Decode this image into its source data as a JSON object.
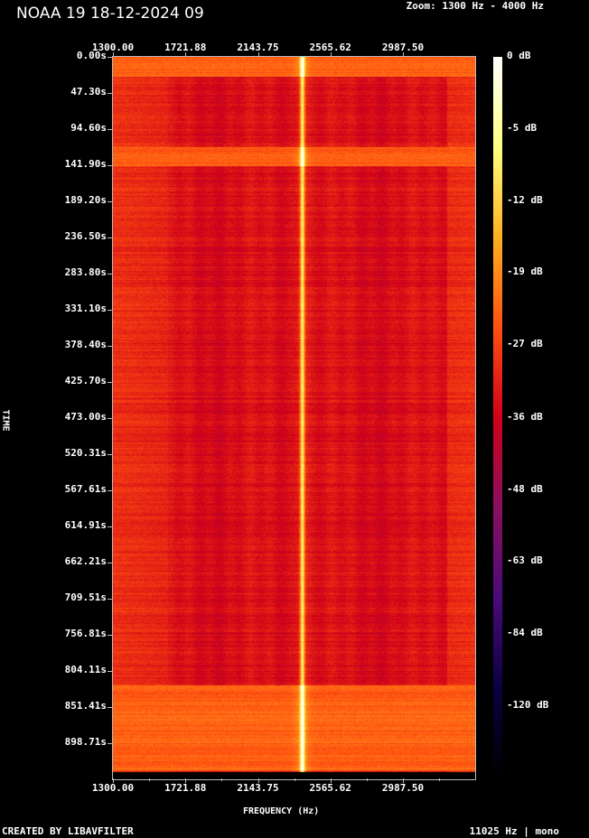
{
  "header": {
    "title": "NOAA 19 18-12-2024 09",
    "zoom_label": "Zoom: 1300 Hz - 4000 Hz"
  },
  "footer": {
    "left": "CREATED BY LIBAVFILTER",
    "right": "11025 Hz | mono"
  },
  "chart_data": {
    "type": "heatmap",
    "title": "NOAA 19 18-12-2024 09",
    "xlabel": "FREQUENCY (Hz)",
    "ylabel": "TIME",
    "x_ticks": [
      "1300.00",
      "1721.88",
      "2143.75",
      "2565.62",
      "2987.50"
    ],
    "x_tick_values": [
      1300,
      1721.88,
      2143.75,
      2565.62,
      2987.5
    ],
    "y_ticks": [
      "0.00s",
      "47.30s",
      "94.60s",
      "141.90s",
      "189.20s",
      "236.50s",
      "283.80s",
      "331.10s",
      "378.40s",
      "425.70s",
      "473.00s",
      "520.31s",
      "567.61s",
      "614.91s",
      "662.21s",
      "709.51s",
      "756.81s",
      "804.11s",
      "851.41s",
      "898.71s"
    ],
    "y_tick_values": [
      0,
      47.3,
      94.6,
      141.9,
      189.2,
      236.5,
      283.8,
      331.1,
      378.4,
      425.7,
      473.0,
      520.31,
      567.61,
      614.91,
      662.21,
      709.51,
      756.81,
      804.11,
      851.41,
      898.71
    ],
    "colorbar_labels": [
      "0 dB",
      "-5 dB",
      "-12 dB",
      "-19 dB",
      "-27 dB",
      "-36 dB",
      "-48 dB",
      "-63 dB",
      "-84 dB",
      "-120 dB"
    ],
    "colorbar_values": [
      0,
      -5,
      -12,
      -19,
      -27,
      -36,
      -48,
      -63,
      -84,
      -120
    ],
    "carrier_frequency_hz": 2400,
    "high_power_time_ranges_s": [
      [
        0,
        25
      ],
      [
        118,
        143
      ],
      [
        823,
        935
      ]
    ],
    "colormap": [
      "#000000",
      "#0a0040",
      "#4a0a7a",
      "#8a1060",
      "#d00018",
      "#ff5010",
      "#ffb020",
      "#ffff80",
      "#ffffff"
    ]
  }
}
